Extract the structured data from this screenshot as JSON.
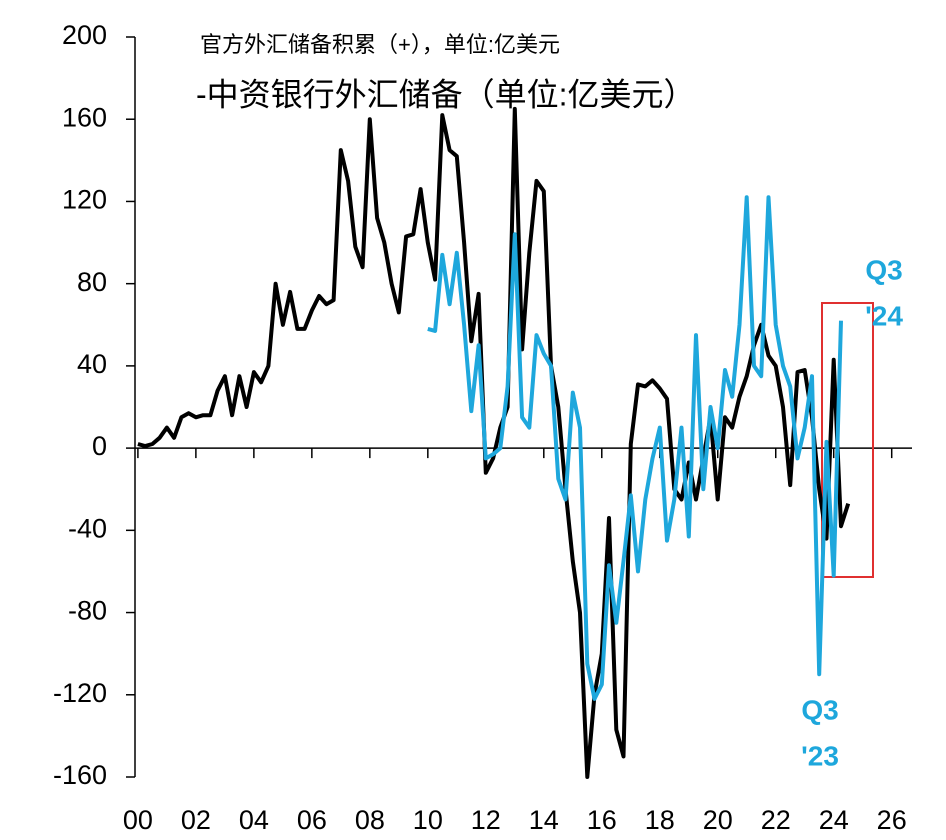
{
  "chart_data": {
    "type": "line",
    "xlim": [
      1999.9,
      2026.7
    ],
    "ylim": [
      -160,
      200
    ],
    "yticks": [
      -160,
      -120,
      -80,
      -40,
      0,
      40,
      80,
      120,
      160,
      200
    ],
    "xticks": [
      {
        "value": 2000,
        "label": "00"
      },
      {
        "value": 2002,
        "label": "02"
      },
      {
        "value": 2004,
        "label": "04"
      },
      {
        "value": 2006,
        "label": "06"
      },
      {
        "value": 2008,
        "label": "08"
      },
      {
        "value": 2010,
        "label": "10"
      },
      {
        "value": 2012,
        "label": "12"
      },
      {
        "value": 2014,
        "label": "14"
      },
      {
        "value": 2016,
        "label": "16"
      },
      {
        "value": 2018,
        "label": "18"
      },
      {
        "value": 2020,
        "label": "20"
      },
      {
        "value": 2022,
        "label": "22"
      },
      {
        "value": 2024,
        "label": "24"
      },
      {
        "value": 2026,
        "label": "26"
      }
    ],
    "series": [
      {
        "name": "官方外汇储备积累（+），单位:亿美元",
        "color": "#000000",
        "x": [
          2000,
          2000.25,
          2000.5,
          2000.75,
          2001,
          2001.25,
          2001.5,
          2001.75,
          2002,
          2002.25,
          2002.5,
          2002.75,
          2003,
          2003.25,
          2003.5,
          2003.75,
          2004,
          2004.25,
          2004.5,
          2004.75,
          2005,
          2005.25,
          2005.5,
          2005.75,
          2006,
          2006.25,
          2006.5,
          2006.75,
          2007,
          2007.25,
          2007.5,
          2007.75,
          2008,
          2008.25,
          2008.5,
          2008.75,
          2009,
          2009.25,
          2009.5,
          2009.75,
          2010,
          2010.25,
          2010.5,
          2010.75,
          2011,
          2011.25,
          2011.5,
          2011.75,
          2012,
          2012.25,
          2012.5,
          2012.75,
          2013,
          2013.25,
          2013.5,
          2013.75,
          2014,
          2014.25,
          2014.5,
          2014.75,
          2015,
          2015.25,
          2015.5,
          2015.75,
          2016,
          2016.25,
          2016.5,
          2016.75,
          2017,
          2017.25,
          2017.5,
          2017.75,
          2018,
          2018.25,
          2018.5,
          2018.75,
          2019,
          2019.25,
          2019.5,
          2019.75,
          2020,
          2020.25,
          2020.5,
          2020.75,
          2021,
          2021.25,
          2021.5,
          2021.75,
          2022,
          2022.25,
          2022.5,
          2022.75,
          2023,
          2023.25,
          2023.5,
          2023.75,
          2024,
          2024.25,
          2024.5
        ],
        "values": [
          2,
          1,
          2,
          5,
          10,
          5,
          15,
          17,
          15,
          16,
          16,
          28,
          35,
          16,
          35,
          20,
          37,
          32,
          40,
          80,
          60,
          76,
          58,
          58,
          67,
          74,
          70,
          72,
          145,
          130,
          98,
          88,
          160,
          112,
          100,
          80,
          66,
          103,
          104,
          126,
          100,
          82,
          162,
          145,
          142,
          100,
          52,
          75,
          -12,
          -5,
          10,
          20,
          165,
          48,
          95,
          130,
          125,
          40,
          20,
          -20,
          -55,
          -80,
          -160,
          -120,
          -100,
          -34,
          -137,
          -150,
          2,
          31,
          30,
          33,
          29,
          24,
          -20,
          -25,
          -7,
          -25,
          -5,
          15,
          -25,
          15,
          10,
          25,
          35,
          50,
          60,
          45,
          40,
          20,
          -18,
          37,
          38,
          15,
          -20,
          -44,
          43,
          -38,
          -27
        ]
      },
      {
        "name": "-中资银行外汇储备（单位:亿美元）",
        "color": "#1ea7dc",
        "x": [
          2010,
          2010.25,
          2010.5,
          2010.75,
          2011,
          2011.25,
          2011.5,
          2011.75,
          2012,
          2012.25,
          2012.5,
          2012.75,
          2013,
          2013.25,
          2013.5,
          2013.75,
          2014,
          2014.25,
          2014.5,
          2014.75,
          2015,
          2015.25,
          2015.5,
          2015.75,
          2016,
          2016.25,
          2016.5,
          2016.75,
          2017,
          2017.25,
          2017.5,
          2017.75,
          2018,
          2018.25,
          2018.5,
          2018.75,
          2019,
          2019.25,
          2019.5,
          2019.75,
          2020,
          2020.25,
          2020.5,
          2020.75,
          2021,
          2021.25,
          2021.5,
          2021.75,
          2022,
          2022.25,
          2022.5,
          2022.75,
          2023,
          2023.25,
          2023.5,
          2023.75,
          2024,
          2024.25
        ],
        "values": [
          58,
          57,
          94,
          70,
          95,
          60,
          18,
          50,
          -5,
          -3,
          0,
          30,
          104,
          15,
          10,
          55,
          46,
          40,
          -15,
          -25,
          27,
          10,
          -105,
          -122,
          -115,
          -57,
          -85,
          -55,
          -23,
          -60,
          -25,
          -5,
          10,
          -45,
          -25,
          10,
          -43,
          55,
          -20,
          20,
          0,
          38,
          25,
          60,
          122,
          40,
          35,
          122,
          60,
          40,
          30,
          -5,
          10,
          35,
          -110,
          3,
          -62,
          62
        ]
      }
    ],
    "annotations": [
      {
        "lines": [
          "Q3",
          "'24"
        ]
      },
      {
        "lines": [
          "Q3",
          "'23"
        ]
      }
    ]
  }
}
